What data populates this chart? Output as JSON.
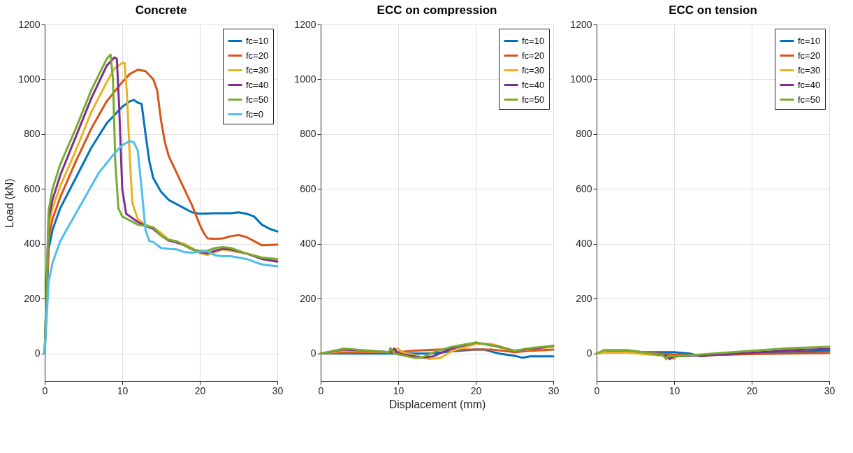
{
  "chart_data": [
    {
      "type": "line",
      "title": "Concrete",
      "ylabel": "Load (kN)",
      "xlim": [
        0,
        30
      ],
      "ylim": [
        -100,
        1200
      ],
      "xticks": [
        0,
        10,
        20,
        30
      ],
      "yticks": [
        0,
        200,
        400,
        600,
        800,
        1000,
        1200
      ],
      "grid": true,
      "legend": "top right",
      "series": [
        {
          "name": "fc=10",
          "color": "#0072bd",
          "x": [
            0,
            0.5,
            1,
            2,
            4,
            6,
            8,
            10,
            11,
            11.5,
            12,
            12.5,
            13,
            13.5,
            14,
            15,
            16,
            17,
            18,
            19,
            20,
            22,
            24,
            25,
            26,
            27,
            28,
            29,
            30
          ],
          "values": [
            0,
            380,
            450,
            530,
            640,
            750,
            840,
            900,
            920,
            925,
            915,
            910,
            800,
            700,
            640,
            590,
            560,
            545,
            530,
            515,
            510,
            512,
            512,
            515,
            510,
            500,
            470,
            455,
            445
          ]
        },
        {
          "name": "fc=20",
          "color": "#d95319",
          "x": [
            0,
            0.5,
            1,
            2,
            4,
            6,
            8,
            10,
            11,
            12,
            13,
            14,
            14.5,
            15,
            15.5,
            16,
            17,
            18,
            19,
            20,
            20.5,
            21,
            22,
            23,
            24,
            25,
            26,
            27,
            28,
            30
          ],
          "values": [
            0,
            420,
            490,
            570,
            700,
            820,
            920,
            990,
            1020,
            1035,
            1030,
            1000,
            960,
            850,
            770,
            720,
            660,
            600,
            540,
            470,
            440,
            420,
            418,
            420,
            428,
            432,
            425,
            410,
            395,
            397
          ]
        },
        {
          "name": "fc=30",
          "color": "#edb120",
          "x": [
            0,
            0.5,
            1,
            2,
            4,
            6,
            8,
            9,
            10,
            10.3,
            10.6,
            11,
            11.3,
            12,
            13,
            14,
            15,
            16,
            17,
            18,
            19,
            20,
            21,
            22,
            23,
            24,
            26,
            28,
            30
          ],
          "values": [
            0,
            460,
            530,
            610,
            740,
            880,
            990,
            1040,
            1060,
            1060,
            950,
            700,
            550,
            490,
            470,
            460,
            440,
            415,
            408,
            400,
            385,
            365,
            360,
            370,
            380,
            375,
            365,
            350,
            338
          ]
        },
        {
          "name": "fc=40",
          "color": "#7e2f8e",
          "x": [
            0,
            0.5,
            1,
            2,
            4,
            6,
            8,
            9,
            9.3,
            9.6,
            10,
            10.5,
            12,
            13,
            14,
            15,
            16,
            17,
            18,
            19,
            20,
            21,
            22,
            23,
            24,
            26,
            28,
            30
          ],
          "values": [
            0,
            490,
            560,
            650,
            790,
            930,
            1050,
            1080,
            1075,
            900,
            600,
            510,
            480,
            465,
            455,
            430,
            412,
            405,
            395,
            380,
            370,
            365,
            375,
            382,
            380,
            365,
            345,
            335
          ]
        },
        {
          "name": "fc=50",
          "color": "#77ac30",
          "x": [
            0,
            0.5,
            1,
            2,
            4,
            6,
            8,
            8.5,
            8.8,
            9.1,
            9.5,
            10,
            11,
            12,
            13,
            14,
            15,
            16,
            17,
            18,
            19,
            20,
            21,
            22,
            23,
            24,
            26,
            28,
            30
          ],
          "values": [
            0,
            520,
            600,
            690,
            820,
            960,
            1075,
            1090,
            1000,
            700,
            530,
            500,
            485,
            470,
            465,
            460,
            430,
            415,
            410,
            395,
            380,
            375,
            375,
            385,
            388,
            385,
            365,
            350,
            345
          ]
        },
        {
          "name": "fc=0",
          "color": "#4dbeee",
          "x": [
            0,
            0.5,
            1,
            2,
            3,
            5,
            7,
            9,
            10,
            11,
            11.5,
            12,
            12.5,
            13,
            13.5,
            14,
            15,
            16,
            17,
            18,
            19,
            20,
            21,
            22,
            23,
            24,
            26,
            28,
            30
          ],
          "values": [
            0,
            260,
            330,
            410,
            460,
            560,
            660,
            730,
            760,
            775,
            770,
            740,
            600,
            450,
            410,
            407,
            385,
            382,
            380,
            370,
            368,
            372,
            372,
            358,
            355,
            355,
            345,
            325,
            318
          ]
        }
      ]
    },
    {
      "type": "line",
      "title": "ECC on compression",
      "xlabel": "Displacement (mm)",
      "xlim": [
        0,
        30
      ],
      "ylim": [
        -100,
        1200
      ],
      "xticks": [
        0,
        10,
        20,
        30
      ],
      "yticks": [
        0,
        200,
        400,
        600,
        800,
        1000,
        1200
      ],
      "grid": true,
      "legend": "top right",
      "series": [
        {
          "name": "fc=10",
          "color": "#0072bd",
          "x": [
            0,
            5,
            10,
            14,
            17,
            20,
            21,
            23,
            25,
            26,
            27,
            30
          ],
          "values": [
            0,
            0,
            0,
            0,
            8,
            15,
            15,
            0,
            -8,
            -15,
            -10,
            -10
          ]
        },
        {
          "name": "fc=20",
          "color": "#d95319",
          "x": [
            0,
            5,
            10,
            12,
            15,
            20,
            22,
            25,
            27,
            30
          ],
          "values": [
            0,
            5,
            5,
            10,
            15,
            15,
            15,
            5,
            10,
            15
          ]
        },
        {
          "name": "fc=30",
          "color": "#edb120",
          "x": [
            0,
            3,
            9,
            10,
            10.5,
            12,
            14,
            15.5,
            17,
            20,
            22,
            25,
            27,
            30
          ],
          "values": [
            0,
            10,
            5,
            18,
            5,
            -5,
            -20,
            -15,
            10,
            35,
            35,
            10,
            15,
            25
          ]
        },
        {
          "name": "fc=40",
          "color": "#7e2f8e",
          "x": [
            0,
            3,
            9,
            9.5,
            10,
            13,
            14.5,
            17,
            20,
            23,
            25,
            28,
            30
          ],
          "values": [
            0,
            15,
            5,
            18,
            0,
            -15,
            -10,
            20,
            40,
            25,
            10,
            20,
            28
          ]
        },
        {
          "name": "fc=50",
          "color": "#77ac30",
          "x": [
            0,
            3,
            8.8,
            9,
            9.5,
            12,
            13,
            15,
            17,
            20,
            22,
            25,
            27,
            30
          ],
          "values": [
            0,
            18,
            5,
            20,
            0,
            -15,
            -15,
            10,
            25,
            40,
            30,
            10,
            20,
            28
          ]
        }
      ]
    },
    {
      "type": "line",
      "title": "ECC on tension",
      "xlim": [
        0,
        30
      ],
      "ylim": [
        -100,
        1200
      ],
      "xticks": [
        0,
        10,
        20,
        30
      ],
      "yticks": [
        0,
        200,
        400,
        600,
        800,
        1000,
        1200
      ],
      "grid": true,
      "legend": "top right",
      "series": [
        {
          "name": "fc=10",
          "color": "#0072bd",
          "x": [
            0,
            2,
            5,
            10,
            12,
            13.5,
            15,
            20,
            25,
            30
          ],
          "values": [
            0,
            8,
            5,
            5,
            0,
            -10,
            -5,
            0,
            5,
            10
          ]
        },
        {
          "name": "fc=20",
          "color": "#d95319",
          "x": [
            0,
            2,
            5,
            8,
            11,
            14,
            15,
            20,
            25,
            30
          ],
          "values": [
            0,
            8,
            8,
            0,
            -5,
            -8,
            -5,
            -2,
            0,
            2
          ]
        },
        {
          "name": "fc=30",
          "color": "#edb120",
          "x": [
            0,
            1,
            4,
            6,
            9,
            10,
            10.3,
            12
          ],
          "values": [
            0,
            3,
            3,
            -2,
            -8,
            -20,
            -10,
            -8
          ]
        },
        {
          "name": "fc=40",
          "color": "#7e2f8e",
          "x": [
            6,
            9,
            9.4,
            10,
            12,
            15,
            20,
            25,
            30
          ],
          "values": [
            5,
            -8,
            -20,
            -10,
            -8,
            -5,
            3,
            12,
            17
          ]
        },
        {
          "name": "fc=50",
          "color": "#77ac30",
          "x": [
            0,
            1,
            4,
            6,
            8.5,
            9,
            9.2,
            11,
            15,
            20,
            25,
            30
          ],
          "values": [
            0,
            13,
            13,
            5,
            -5,
            -20,
            -10,
            -8,
            0,
            10,
            20,
            25
          ]
        }
      ]
    }
  ]
}
